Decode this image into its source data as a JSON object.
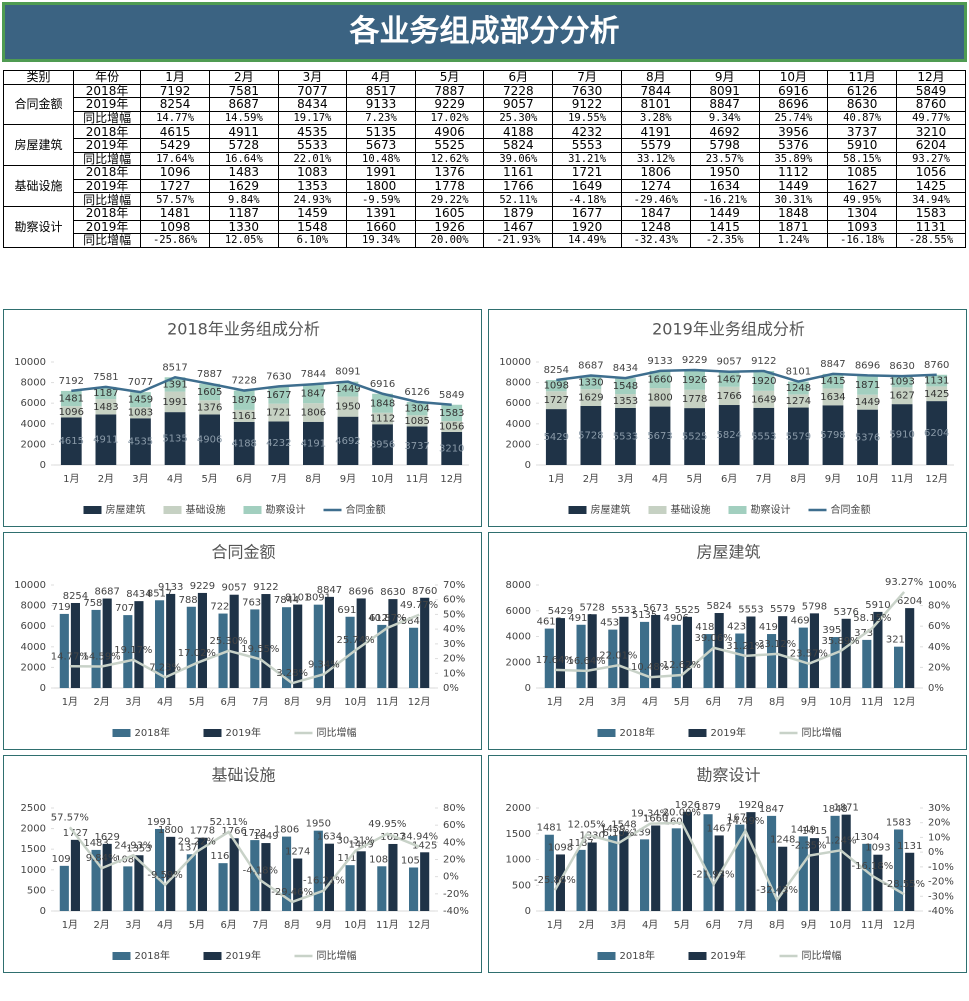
{
  "header": {
    "title": "各业务组成部分分析"
  },
  "table": {
    "columns": [
      "类别",
      "年份",
      "1月",
      "2月",
      "3月",
      "4月",
      "5月",
      "6月",
      "7月",
      "8月",
      "9月",
      "10月",
      "11月",
      "12月"
    ],
    "groups": [
      {
        "category": "合同金额",
        "rows": [
          {
            "year": "2018年",
            "values": [
              7192,
              7581,
              7077,
              8517,
              7887,
              7228,
              7630,
              7844,
              8091,
              6916,
              6126,
              5849
            ]
          },
          {
            "year": "2019年",
            "values": [
              8254,
              8687,
              8434,
              9133,
              9229,
              9057,
              9122,
              8101,
              8847,
              8696,
              8630,
              8760
            ]
          },
          {
            "year": "同比增幅",
            "values": [
              "14.77%",
              "14.59%",
              "19.17%",
              "7.23%",
              "17.02%",
              "25.30%",
              "19.55%",
              "3.28%",
              "9.34%",
              "25.74%",
              "40.87%",
              "49.77%"
            ]
          }
        ]
      },
      {
        "category": "房屋建筑",
        "rows": [
          {
            "year": "2018年",
            "values": [
              4615,
              4911,
              4535,
              5135,
              4906,
              4188,
              4232,
              4191,
              4692,
              3956,
              3737,
              3210
            ]
          },
          {
            "year": "2019年",
            "values": [
              5429,
              5728,
              5533,
              5673,
              5525,
              5824,
              5553,
              5579,
              5798,
              5376,
              5910,
              6204
            ]
          },
          {
            "year": "同比增幅",
            "values": [
              "17.64%",
              "16.64%",
              "22.01%",
              "10.48%",
              "12.62%",
              "39.06%",
              "31.21%",
              "33.12%",
              "23.57%",
              "35.89%",
              "58.15%",
              "93.27%"
            ]
          }
        ]
      },
      {
        "category": "基础设施",
        "rows": [
          {
            "year": "2018年",
            "values": [
              1096,
              1483,
              1083,
              1991,
              1376,
              1161,
              1721,
              1806,
              1950,
              1112,
              1085,
              1056
            ]
          },
          {
            "year": "2019年",
            "values": [
              1727,
              1629,
              1353,
              1800,
              1778,
              1766,
              1649,
              1274,
              1634,
              1449,
              1627,
              1425
            ]
          },
          {
            "year": "同比增幅",
            "values": [
              "57.57%",
              "9.84%",
              "24.93%",
              "-9.59%",
              "29.22%",
              "52.11%",
              "-4.18%",
              "-29.46%",
              "-16.21%",
              "30.31%",
              "49.95%",
              "34.94%"
            ]
          }
        ]
      },
      {
        "category": "勘察设计",
        "rows": [
          {
            "year": "2018年",
            "values": [
              1481,
              1187,
              1459,
              1391,
              1605,
              1879,
              1677,
              1847,
              1449,
              1848,
              1304,
              1583
            ]
          },
          {
            "year": "2019年",
            "values": [
              1098,
              1330,
              1548,
              1660,
              1926,
              1467,
              1920,
              1248,
              1415,
              1871,
              1093,
              1131
            ]
          },
          {
            "year": "同比增幅",
            "values": [
              "-25.86%",
              "12.05%",
              "6.10%",
              "19.34%",
              "20.00%",
              "-21.93%",
              "14.49%",
              "-32.43%",
              "-2.35%",
              "1.24%",
              "-16.18%",
              "-28.55%"
            ]
          }
        ]
      }
    ]
  },
  "chart_data": [
    {
      "type": "bar",
      "stacked": true,
      "title": "2018年业务组成分析",
      "categories": [
        "1月",
        "2月",
        "3月",
        "4月",
        "5月",
        "6月",
        "7月",
        "8月",
        "9月",
        "10月",
        "11月",
        "12月"
      ],
      "ylim": [
        0,
        10000
      ],
      "yticks": [
        0,
        2000,
        4000,
        6000,
        8000,
        10000
      ],
      "series": [
        {
          "name": "房屋建筑",
          "color": "#1f3347",
          "values": [
            4615,
            4911,
            4535,
            5135,
            4906,
            4188,
            4232,
            4191,
            4692,
            3956,
            3737,
            3210
          ]
        },
        {
          "name": "基础设施",
          "color": "#c6d1c3",
          "values": [
            1096,
            1483,
            1083,
            1991,
            1376,
            1161,
            1721,
            1806,
            1950,
            1112,
            1085,
            1056
          ]
        },
        {
          "name": "勘察设计",
          "color": "#a2cfbf",
          "values": [
            1481,
            1187,
            1459,
            1391,
            1605,
            1879,
            1677,
            1847,
            1449,
            1848,
            1304,
            1583
          ]
        },
        {
          "name": "合同金额",
          "type": "line",
          "color": "#3e6e8e",
          "values": [
            7192,
            7581,
            7077,
            8517,
            7887,
            7228,
            7630,
            7844,
            8091,
            6916,
            6126,
            5849
          ]
        }
      ]
    },
    {
      "type": "bar",
      "stacked": true,
      "title": "2019年业务组成分析",
      "categories": [
        "1月",
        "2月",
        "3月",
        "4月",
        "5月",
        "6月",
        "7月",
        "8月",
        "9月",
        "10月",
        "11月",
        "12月"
      ],
      "ylim": [
        0,
        10000
      ],
      "yticks": [
        0,
        2000,
        4000,
        6000,
        8000,
        10000
      ],
      "series": [
        {
          "name": "房屋建筑",
          "color": "#1f3347",
          "values": [
            5429,
            5728,
            5533,
            5673,
            5525,
            5824,
            5553,
            5579,
            5798,
            5376,
            5910,
            6204
          ]
        },
        {
          "name": "基础设施",
          "color": "#c6d1c3",
          "values": [
            1727,
            1629,
            1353,
            1800,
            1778,
            1766,
            1649,
            1274,
            1634,
            1449,
            1627,
            1425
          ]
        },
        {
          "name": "勘察设计",
          "color": "#a2cfbf",
          "values": [
            1098,
            1330,
            1548,
            1660,
            1926,
            1467,
            1920,
            1248,
            1415,
            1871,
            1093,
            1131
          ]
        },
        {
          "name": "合同金额",
          "type": "line",
          "color": "#3e6e8e",
          "values": [
            8254,
            8687,
            8434,
            9133,
            9229,
            9057,
            9122,
            8101,
            8847,
            8696,
            8630,
            8760
          ]
        }
      ]
    },
    {
      "type": "bar",
      "stacked": false,
      "title": "合同金额",
      "categories": [
        "1月",
        "2月",
        "3月",
        "4月",
        "5月",
        "6月",
        "7月",
        "8月",
        "9月",
        "10月",
        "11月",
        "12月"
      ],
      "ylim": [
        0,
        10000
      ],
      "yticks": [
        0,
        2000,
        4000,
        6000,
        8000,
        10000
      ],
      "y2lim": [
        0,
        70
      ],
      "y2ticks": [
        {
          "value": 0,
          "label": "0%"
        },
        {
          "value": 10,
          "label": "10%"
        },
        {
          "value": 20,
          "label": "20%"
        },
        {
          "value": 30,
          "label": "30%"
        },
        {
          "value": 40,
          "label": "40%"
        },
        {
          "value": 50,
          "label": "50%"
        },
        {
          "value": 60,
          "label": "60%"
        },
        {
          "value": 70,
          "label": "70%"
        }
      ],
      "series": [
        {
          "name": "2018年",
          "color": "#3d6e8a",
          "values": [
            7192,
            7581,
            7077,
            8517,
            7887,
            7228,
            7630,
            7844,
            8091,
            6916,
            6126,
            5849
          ]
        },
        {
          "name": "2019年",
          "color": "#1f3347",
          "values": [
            8254,
            8687,
            8434,
            9133,
            9229,
            9057,
            9122,
            8101,
            8847,
            8696,
            8630,
            8760
          ]
        },
        {
          "name": "同比增幅",
          "type": "line",
          "axis": "y2",
          "color": "#c8d2c8",
          "values": [
            14.77,
            14.59,
            19.17,
            7.23,
            17.02,
            25.3,
            19.55,
            3.28,
            9.34,
            25.74,
            40.87,
            49.77
          ],
          "value_labels": [
            "14.77%",
            "14.59%",
            "19.17%",
            "7.23%",
            "17.02%",
            "25.30%",
            "19.55%",
            "3.28%",
            "9.34%",
            "25.74%",
            "40.87%",
            "49.77%"
          ]
        }
      ]
    },
    {
      "type": "bar",
      "stacked": false,
      "title": "房屋建筑",
      "categories": [
        "1月",
        "2月",
        "3月",
        "4月",
        "5月",
        "6月",
        "7月",
        "8月",
        "9月",
        "10月",
        "11月",
        "12月"
      ],
      "ylim": [
        0,
        8000
      ],
      "yticks": [
        0,
        2000,
        4000,
        6000,
        8000
      ],
      "y2lim": [
        0,
        100
      ],
      "y2ticks": [
        {
          "value": 0,
          "label": "0%"
        },
        {
          "value": 20,
          "label": "20%"
        },
        {
          "value": 40,
          "label": "40%"
        },
        {
          "value": 60,
          "label": "60%"
        },
        {
          "value": 80,
          "label": "80%"
        },
        {
          "value": 100,
          "label": "100%"
        }
      ],
      "series": [
        {
          "name": "2018年",
          "color": "#3d6e8a",
          "values": [
            4615,
            4911,
            4535,
            5135,
            4906,
            4188,
            4232,
            4191,
            4692,
            3956,
            3737,
            3210
          ]
        },
        {
          "name": "2019年",
          "color": "#1f3347",
          "values": [
            5429,
            5728,
            5533,
            5673,
            5525,
            5824,
            5553,
            5579,
            5798,
            5376,
            5910,
            6204
          ]
        },
        {
          "name": "同比增幅",
          "type": "line",
          "axis": "y2",
          "color": "#c8d2c8",
          "values": [
            17.64,
            16.64,
            22.01,
            10.48,
            12.62,
            39.06,
            31.21,
            33.12,
            23.57,
            35.89,
            58.15,
            93.27
          ],
          "value_labels": [
            "17.64%",
            "16.64%",
            "22.01%",
            "10.48%",
            "12.62%",
            "39.06%",
            "31.21%",
            "33.12%",
            "23.57%",
            "35.89%",
            "58.15%",
            "93.27%"
          ]
        }
      ]
    },
    {
      "type": "bar",
      "stacked": false,
      "title": "基础设施",
      "categories": [
        "1月",
        "2月",
        "3月",
        "4月",
        "5月",
        "6月",
        "7月",
        "8月",
        "9月",
        "10月",
        "11月",
        "12月"
      ],
      "ylim": [
        0,
        2500
      ],
      "yticks": [
        0,
        500,
        1000,
        1500,
        2000,
        2500
      ],
      "y2lim": [
        -40,
        80
      ],
      "y2ticks": [
        {
          "value": -40,
          "label": "-40%"
        },
        {
          "value": -20,
          "label": "-20%"
        },
        {
          "value": 0,
          "label": "0%"
        },
        {
          "value": 20,
          "label": "20%"
        },
        {
          "value": 40,
          "label": "40%"
        },
        {
          "value": 60,
          "label": "60%"
        },
        {
          "value": 80,
          "label": "80%"
        }
      ],
      "series": [
        {
          "name": "2018年",
          "color": "#3d6e8a",
          "values": [
            1096,
            1483,
            1083,
            1991,
            1376,
            1161,
            1721,
            1806,
            1950,
            1112,
            1085,
            1056
          ]
        },
        {
          "name": "2019年",
          "color": "#1f3347",
          "values": [
            1727,
            1629,
            1353,
            1800,
            1778,
            1766,
            1649,
            1274,
            1634,
            1449,
            1627,
            1425
          ]
        },
        {
          "name": "同比增幅",
          "type": "line",
          "axis": "y2",
          "color": "#c8d2c8",
          "values": [
            57.57,
            9.84,
            24.93,
            -9.59,
            29.22,
            52.11,
            -4.18,
            -29.46,
            -16.21,
            30.31,
            49.95,
            34.94
          ],
          "value_labels": [
            "57.57%",
            "9.84%",
            "24.93%",
            "-9.59%",
            "29.22%",
            "52.11%",
            "-4.18%",
            "-29.46%",
            "-16.21%",
            "30.31%",
            "49.95%",
            "34.94%"
          ]
        }
      ]
    },
    {
      "type": "bar",
      "stacked": false,
      "title": "勘察设计",
      "categories": [
        "1月",
        "2月",
        "3月",
        "4月",
        "5月",
        "6月",
        "7月",
        "8月",
        "9月",
        "10月",
        "11月",
        "12月"
      ],
      "ylim": [
        0,
        2000
      ],
      "yticks": [
        0,
        500,
        1000,
        1500,
        2000
      ],
      "y2lim": [
        -40,
        30
      ],
      "y2ticks": [
        {
          "value": -40,
          "label": "-40%"
        },
        {
          "value": -30,
          "label": "-30%"
        },
        {
          "value": -20,
          "label": "-20%"
        },
        {
          "value": -10,
          "label": "-10%"
        },
        {
          "value": 0,
          "label": "0%"
        },
        {
          "value": 10,
          "label": "10%"
        },
        {
          "value": 20,
          "label": "20%"
        },
        {
          "value": 30,
          "label": "30%"
        }
      ],
      "series": [
        {
          "name": "2018年",
          "color": "#3d6e8a",
          "values": [
            1481,
            1187,
            1459,
            1391,
            1605,
            1879,
            1677,
            1847,
            1449,
            1848,
            1304,
            1583
          ]
        },
        {
          "name": "2019年",
          "color": "#1f3347",
          "values": [
            1098,
            1330,
            1548,
            1660,
            1926,
            1467,
            1920,
            1248,
            1415,
            1871,
            1093,
            1131
          ]
        },
        {
          "name": "同比增幅",
          "type": "line",
          "axis": "y2",
          "color": "#c8d2c8",
          "values": [
            -25.86,
            12.05,
            6.1,
            19.34,
            20.0,
            -21.93,
            14.49,
            -32.43,
            -2.35,
            1.24,
            -16.18,
            -28.55
          ],
          "value_labels": [
            "-25.86%",
            "12.05%",
            "6.10%",
            "19.34%",
            "20.00%",
            "-21.93%",
            "14.49%",
            "-32.43%",
            "-2.35%",
            "1.24%",
            "-16.18%",
            "-28.55%"
          ]
        }
      ]
    }
  ]
}
